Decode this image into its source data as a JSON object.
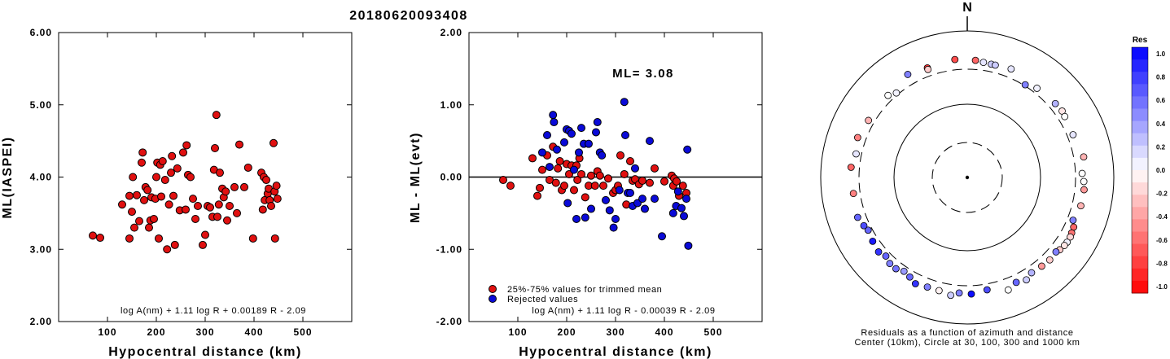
{
  "title": "20180620093408",
  "colors": {
    "red": "#e01010",
    "blue": "#0a0ad8",
    "frame": "#000000"
  },
  "left_plot": {
    "ylabel": "ML(IASPEI)",
    "xlabel": "Hypocentral distance (km)",
    "formula": "log A(nm) + 1.11 log R + 0.00189 R - 2.09",
    "chart_data": {
      "type": "scatter",
      "xlim": [
        0,
        600
      ],
      "ylim": [
        2.0,
        6.0
      ],
      "xticks": [
        "100",
        "200",
        "300",
        "400",
        "500"
      ],
      "yticks": [
        "2.00",
        "3.00",
        "4.00",
        "5.00",
        "6.00"
      ],
      "series": [
        {
          "color": "#e01010",
          "points": [
            [
              70,
              3.19
            ],
            [
              85,
              3.16
            ],
            [
              130,
              3.62
            ],
            [
              145,
              3.74
            ],
            [
              145,
              3.15
            ],
            [
              150,
              3.52
            ],
            [
              152,
              4.0
            ],
            [
              155,
              3.3
            ],
            [
              160,
              3.75
            ],
            [
              165,
              3.39
            ],
            [
              170,
              4.2
            ],
            [
              172,
              4.34
            ],
            [
              175,
              3.68
            ],
            [
              178,
              3.86
            ],
            [
              182,
              3.82
            ],
            [
              185,
              3.3
            ],
            [
              188,
              3.4
            ],
            [
              190,
              3.72
            ],
            [
              195,
              3.42
            ],
            [
              198,
              3.7
            ],
            [
              200,
              4.0
            ],
            [
              202,
              4.2
            ],
            [
              205,
              3.15
            ],
            [
              208,
              4.17
            ],
            [
              210,
              3.73
            ],
            [
              213,
              4.22
            ],
            [
              218,
              3.96
            ],
            [
              222,
              3.0
            ],
            [
              226,
              3.62
            ],
            [
              230,
              4.06
            ],
            [
              232,
              4.29
            ],
            [
              235,
              3.74
            ],
            [
              238,
              3.06
            ],
            [
              243,
              4.12
            ],
            [
              248,
              3.54
            ],
            [
              255,
              4.34
            ],
            [
              260,
              3.55
            ],
            [
              262,
              4.44
            ],
            [
              265,
              4.03
            ],
            [
              270,
              4.0
            ],
            [
              275,
              3.7
            ],
            [
              280,
              3.42
            ],
            [
              285,
              3.6
            ],
            [
              295,
              3.06
            ],
            [
              300,
              3.2
            ],
            [
              305,
              3.6
            ],
            [
              310,
              3.58
            ],
            [
              315,
              3.45
            ],
            [
              318,
              4.1
            ],
            [
              320,
              4.4
            ],
            [
              323,
              4.86
            ],
            [
              325,
              3.45
            ],
            [
              328,
              3.62
            ],
            [
              330,
              4.06
            ],
            [
              335,
              3.84
            ],
            [
              338,
              3.72
            ],
            [
              342,
              3.8
            ],
            [
              345,
              3.4
            ],
            [
              350,
              3.6
            ],
            [
              360,
              3.86
            ],
            [
              365,
              3.5
            ],
            [
              370,
              4.45
            ],
            [
              380,
              3.86
            ],
            [
              388,
              4.13
            ],
            [
              398,
              3.15
            ],
            [
              415,
              4.06
            ],
            [
              418,
              3.55
            ],
            [
              420,
              4.0
            ],
            [
              422,
              3.68
            ],
            [
              425,
              3.96
            ],
            [
              428,
              3.77
            ],
            [
              430,
              3.84
            ],
            [
              432,
              3.68
            ],
            [
              435,
              3.6
            ],
            [
              440,
              4.47
            ],
            [
              442,
              3.8
            ],
            [
              443,
              3.15
            ],
            [
              446,
              3.88
            ],
            [
              448,
              3.7
            ]
          ]
        }
      ]
    }
  },
  "mid_plot": {
    "ylabel": "ML - ML(evt)",
    "xlabel": "Hypocentral distance (km)",
    "ml_label": "ML= 3.08",
    "legend": [
      "25%-75% values for trimmed mean",
      "Rejected values"
    ],
    "formula": "log A(nm) + 1.11 log R - 0.00039 R - 2.09",
    "chart_data": {
      "type": "scatter",
      "xlim": [
        0,
        600
      ],
      "ylim": [
        -2.0,
        2.0
      ],
      "xticks": [
        "100",
        "200",
        "300",
        "400",
        "500"
      ],
      "yticks": [
        "-2.00",
        "-1.00",
        "0.00",
        "1.00",
        "2.00"
      ],
      "series": [
        {
          "name": "25%-75% values for trimmed mean",
          "color": "#e01010",
          "points": [
            [
              70,
              -0.04
            ],
            [
              85,
              -0.12
            ],
            [
              130,
              0.26
            ],
            [
              140,
              -0.26
            ],
            [
              145,
              -0.15
            ],
            [
              150,
              0.1
            ],
            [
              160,
              0.3
            ],
            [
              165,
              -0.04
            ],
            [
              172,
              0.42
            ],
            [
              178,
              -0.08
            ],
            [
              182,
              0.12
            ],
            [
              186,
              0.22
            ],
            [
              190,
              -0.18
            ],
            [
              195,
              -0.12
            ],
            [
              200,
              0.18
            ],
            [
              205,
              0.04
            ],
            [
              210,
              0.16
            ],
            [
              215,
              -0.18
            ],
            [
              220,
              0.16
            ],
            [
              222,
              -0.04
            ],
            [
              226,
              0.26
            ],
            [
              230,
              0.04
            ],
            [
              238,
              -0.28
            ],
            [
              245,
              -0.12
            ],
            [
              250,
              0.02
            ],
            [
              258,
              -0.12
            ],
            [
              263,
              0.08
            ],
            [
              268,
              0.02
            ],
            [
              275,
              -0.12
            ],
            [
              285,
              -0.02
            ],
            [
              295,
              -0.22
            ],
            [
              300,
              -0.18
            ],
            [
              305,
              -0.12
            ],
            [
              310,
              0.3
            ],
            [
              318,
              0.04
            ],
            [
              322,
              -0.38
            ],
            [
              330,
              0.22
            ],
            [
              335,
              -0.05
            ],
            [
              340,
              -0.03
            ],
            [
              348,
              -0.1
            ],
            [
              355,
              -0.05
            ],
            [
              370,
              -0.08
            ],
            [
              380,
              0.12
            ],
            [
              400,
              -0.06
            ],
            [
              415,
              0.02
            ],
            [
              418,
              -0.12
            ],
            [
              420,
              -0.02
            ],
            [
              425,
              -0.06
            ],
            [
              430,
              -0.26
            ],
            [
              438,
              -0.12
            ],
            [
              445,
              -0.22
            ]
          ]
        },
        {
          "name": "Rejected values",
          "color": "#0a0ad8",
          "points": [
            [
              150,
              0.34
            ],
            [
              160,
              0.58
            ],
            [
              165,
              0.14
            ],
            [
              172,
              0.86
            ],
            [
              174,
              0.76
            ],
            [
              180,
              0.38
            ],
            [
              195,
              0.48
            ],
            [
              200,
              0.66
            ],
            [
              202,
              -0.36
            ],
            [
              205,
              0.64
            ],
            [
              210,
              0.6
            ],
            [
              215,
              0.1
            ],
            [
              220,
              -0.58
            ],
            [
              225,
              0.34
            ],
            [
              230,
              0.68
            ],
            [
              235,
              0.46
            ],
            [
              238,
              -0.56
            ],
            [
              245,
              0.46
            ],
            [
              250,
              -0.44
            ],
            [
              260,
              0.62
            ],
            [
              263,
              0.76
            ],
            [
              268,
              0.34
            ],
            [
              272,
              0.3
            ],
            [
              280,
              -0.32
            ],
            [
              288,
              -0.46
            ],
            [
              296,
              -0.7
            ],
            [
              300,
              -0.58
            ],
            [
              308,
              -0.18
            ],
            [
              318,
              1.04
            ],
            [
              320,
              0.58
            ],
            [
              325,
              -0.22
            ],
            [
              330,
              -0.22
            ],
            [
              335,
              -0.4
            ],
            [
              340,
              0.12
            ],
            [
              345,
              -0.36
            ],
            [
              355,
              -0.3
            ],
            [
              360,
              -0.44
            ],
            [
              370,
              0.5
            ],
            [
              380,
              -0.3
            ],
            [
              395,
              -0.82
            ],
            [
              418,
              -0.5
            ],
            [
              424,
              -0.4
            ],
            [
              428,
              -0.2
            ],
            [
              435,
              -0.43
            ],
            [
              440,
              -0.54
            ],
            [
              445,
              -0.3
            ],
            [
              447,
              0.38
            ],
            [
              449,
              -0.95
            ]
          ]
        }
      ]
    }
  },
  "polar": {
    "north_label": "N",
    "caption1": "Residuals as a function of azimuth and distance",
    "caption2": "Center (10km), Circle at 30, 100, 300 and 1000 km",
    "chart_data": {
      "type": "scatter",
      "rings_km": [
        10,
        30,
        100,
        300,
        1000
      ],
      "points": [
        [
          -20,
          390,
          -0.8
        ],
        [
          -6,
          415,
          -0.7
        ],
        [
          4,
          400,
          -0.6
        ],
        [
          8,
          385,
          0.1
        ],
        [
          12,
          380,
          0.2
        ],
        [
          14,
          380,
          0.2
        ],
        [
          22,
          395,
          0.1
        ],
        [
          38,
          350,
          0.05
        ],
        [
          32,
          310,
          0.5
        ],
        [
          55,
          380,
          -0.1
        ],
        [
          50,
          370,
          0.3
        ],
        [
          58,
          370,
          0.0
        ],
        [
          68,
          360,
          0.1
        ],
        [
          80,
          410,
          -0.3
        ],
        [
          88,
          370,
          0.0
        ],
        [
          92,
          390,
          0.0
        ],
        [
          96,
          400,
          -0.4
        ],
        [
          104,
          395,
          -0.3
        ],
        [
          112,
          360,
          0.5
        ],
        [
          115,
          400,
          -0.6
        ],
        [
          118,
          410,
          -0.55
        ],
        [
          120,
          420,
          -0.15
        ],
        [
          123,
          420,
          0.05
        ],
        [
          125,
          415,
          -0.1
        ],
        [
          128,
          400,
          -0.2
        ],
        [
          130,
          380,
          0.5
        ],
        [
          135,
          390,
          -0.2
        ],
        [
          140,
          380,
          -0.4
        ],
        [
          146,
          370,
          0.3
        ],
        [
          150,
          410,
          0.2
        ],
        [
          155,
          380,
          0.6
        ],
        [
          160,
          430,
          0.0
        ],
        [
          170,
          360,
          0.7
        ],
        [
          178,
          390,
          0.95
        ],
        [
          184,
          380,
          0.5
        ],
        [
          188,
          420,
          0.2
        ],
        [
          194,
          390,
          -0.05
        ],
        [
          200,
          390,
          0.5
        ],
        [
          206,
          410,
          0.8
        ],
        [
          210,
          370,
          0.6
        ],
        [
          214,
          350,
          0.4
        ],
        [
          218,
          380,
          0.55
        ],
        [
          222,
          380,
          0.5
        ],
        [
          226,
          350,
          0.6
        ],
        [
          230,
          380,
          0.8
        ],
        [
          236,
          360,
          0.9
        ],
        [
          242,
          340,
          0.6
        ],
        [
          245,
          360,
          0.7
        ],
        [
          250,
          390,
          0.6
        ],
        [
          262,
          370,
          -0.5
        ],
        [
          275,
          390,
          -0.6
        ],
        [
          282,
          355,
          0.1
        ],
        [
          290,
          390,
          -0.5
        ],
        [
          300,
          360,
          -0.3
        ],
        [
          316,
          360,
          0.0
        ],
        [
          320,
          320,
          0.05
        ],
        [
          330,
          420,
          0.5
        ],
        [
          340,
          370,
          -0.2
        ]
      ]
    }
  },
  "colorbar": {
    "title": "Res",
    "labels": [
      "1.0",
      "0.8",
      "0.6",
      "0.4",
      "0.2",
      "0.0",
      "-0.2",
      "-0.4",
      "-0.6",
      "-0.8",
      "-1.0"
    ]
  }
}
